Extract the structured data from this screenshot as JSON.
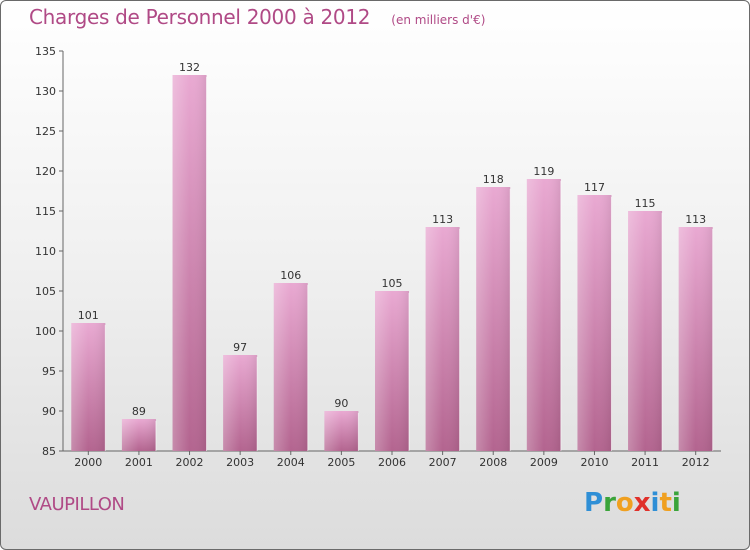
{
  "header": {
    "title": "Charges de Personnel 2000 à 2012",
    "subtitle": "(en milliers d'€)"
  },
  "commune": "VAUPILLON",
  "logo": {
    "letters": [
      {
        "ch": "P",
        "color": "#2f8fd6"
      },
      {
        "ch": "r",
        "color": "#3aa43a"
      },
      {
        "ch": "o",
        "color": "#f0a020"
      },
      {
        "ch": "x",
        "color": "#e0302a"
      },
      {
        "ch": "i",
        "color": "#2f8fd6"
      },
      {
        "ch": "t",
        "color": "#f0a020"
      },
      {
        "ch": "i",
        "color": "#3aa43a"
      }
    ]
  },
  "colors": {
    "bar_top": "#e9a9d2",
    "bar_bottom": "#b3648f",
    "text": "#b04a86"
  },
  "chart_data": {
    "type": "bar",
    "title": "Charges de Personnel 2000 à 2012",
    "subtitle": "(en milliers d'€)",
    "categories": [
      "2000",
      "2001",
      "2002",
      "2003",
      "2004",
      "2005",
      "2006",
      "2007",
      "2008",
      "2009",
      "2010",
      "2011",
      "2012"
    ],
    "values": [
      101,
      89,
      132,
      97,
      106,
      90,
      105,
      113,
      118,
      119,
      117,
      115,
      113
    ],
    "ylim": [
      85,
      135
    ],
    "yticks": [
      85,
      90,
      95,
      100,
      105,
      110,
      115,
      120,
      125,
      130,
      135
    ],
    "grid": false,
    "legend": "none"
  }
}
